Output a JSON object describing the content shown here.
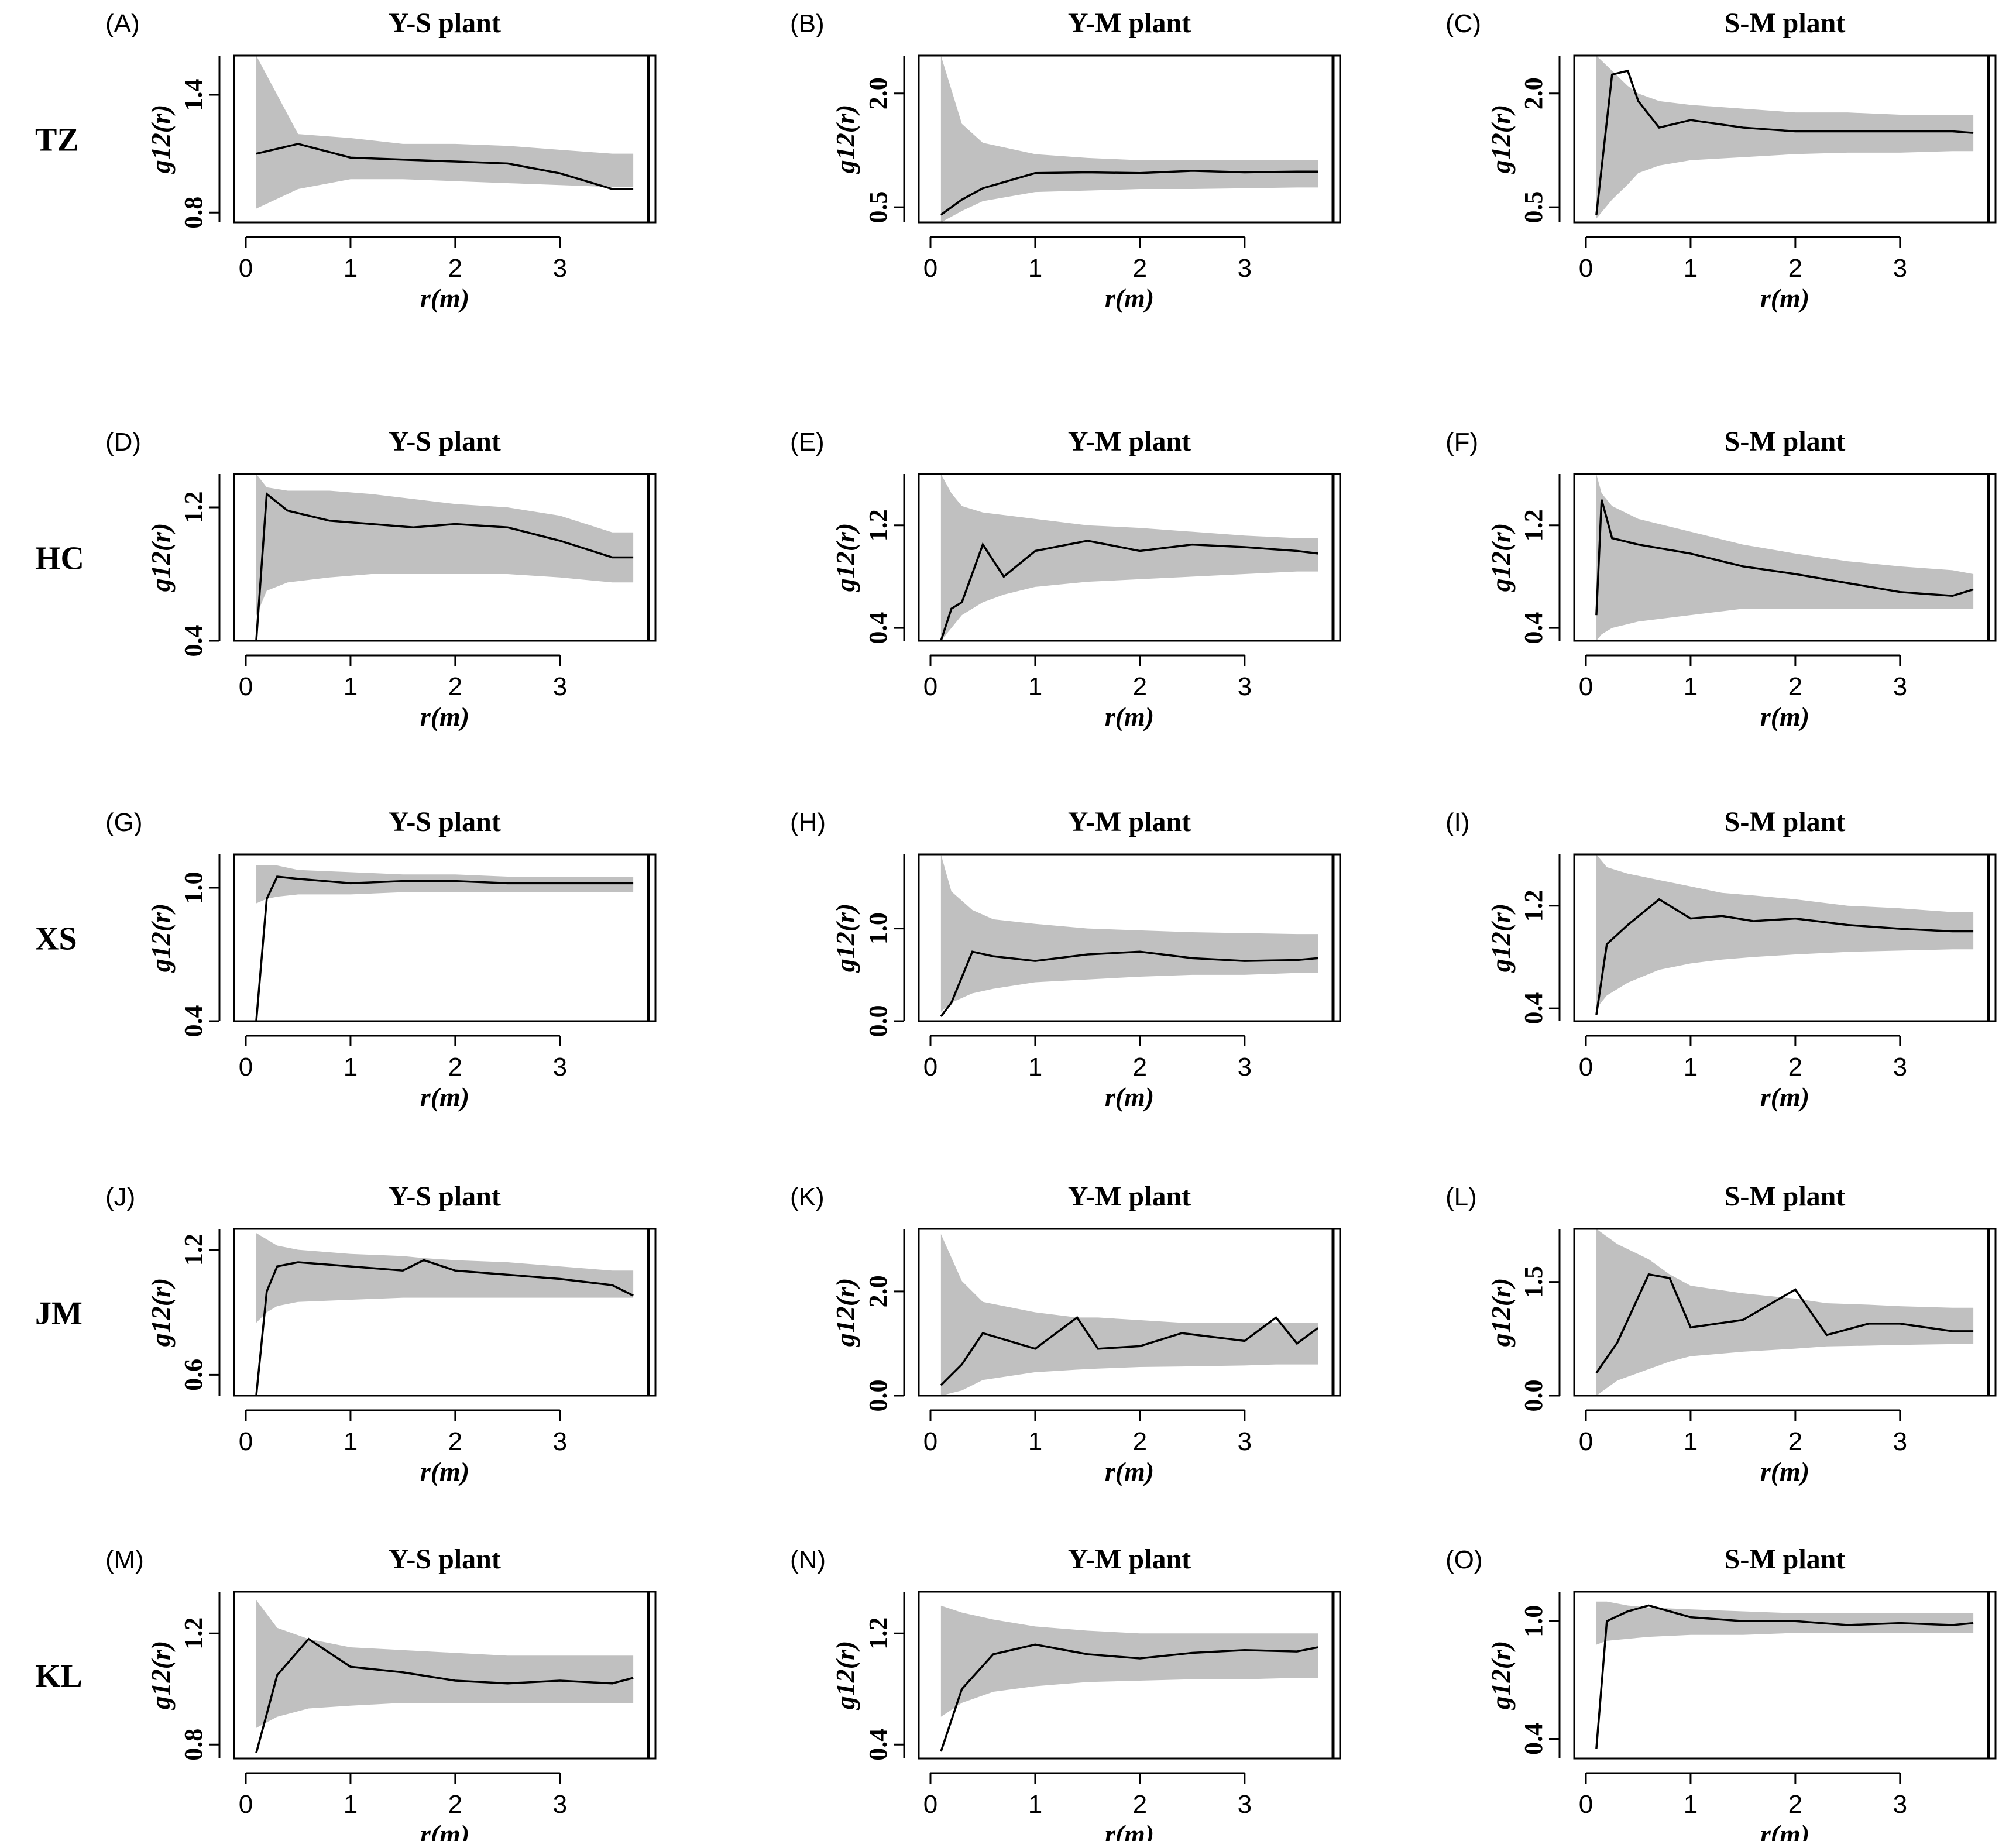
{
  "figure": {
    "rows": [
      {
        "label": "TZ"
      },
      {
        "label": "HC"
      },
      {
        "label": "XS"
      },
      {
        "label": "JM"
      },
      {
        "label": "KL"
      }
    ]
  },
  "chart_data": [
    {
      "type": "line",
      "panel": "(A)",
      "title": "Y-S plant",
      "xlabel": "r(m)",
      "ylabel": "g12(r)",
      "xlim": [
        0,
        3.8
      ],
      "ylim": [
        0.75,
        1.6
      ],
      "xticks": [
        "0",
        "1",
        "2",
        "3"
      ],
      "yticks": [
        "0.8",
        "1.4"
      ],
      "x": [
        0.1,
        0.5,
        1,
        1.5,
        2,
        2.5,
        3,
        3.5,
        3.7
      ],
      "series": [
        {
          "name": "g12(r)",
          "values": [
            1.1,
            1.15,
            1.08,
            1.07,
            1.06,
            1.05,
            1.0,
            0.92,
            0.92
          ]
        }
      ],
      "envelope": {
        "upper": [
          1.6,
          1.2,
          1.18,
          1.15,
          1.15,
          1.14,
          1.12,
          1.1,
          1.1
        ],
        "lower": [
          0.82,
          0.92,
          0.97,
          0.97,
          0.96,
          0.95,
          0.94,
          0.93,
          0.93
        ]
      }
    },
    {
      "type": "line",
      "panel": "(B)",
      "title": "Y-M plant",
      "xlabel": "r(m)",
      "ylabel": "g12(r)",
      "xlim": [
        0,
        3.8
      ],
      "ylim": [
        0.3,
        2.5
      ],
      "xticks": [
        "0",
        "1",
        "2",
        "3"
      ],
      "yticks": [
        "0.5",
        "2.0"
      ],
      "x": [
        0.1,
        0.3,
        0.5,
        1,
        1.5,
        2,
        2.5,
        3,
        3.5,
        3.7
      ],
      "series": [
        {
          "name": "g12(r)",
          "values": [
            0.4,
            0.6,
            0.75,
            0.95,
            0.96,
            0.95,
            0.98,
            0.96,
            0.97,
            0.97
          ]
        }
      ],
      "envelope": {
        "upper": [
          2.5,
          1.6,
          1.35,
          1.2,
          1.15,
          1.12,
          1.12,
          1.12,
          1.12,
          1.12
        ],
        "lower": [
          0.3,
          0.45,
          0.58,
          0.7,
          0.72,
          0.74,
          0.74,
          0.75,
          0.76,
          0.76
        ]
      }
    },
    {
      "type": "line",
      "panel": "(C)",
      "title": "S-M plant",
      "xlabel": "r(m)",
      "ylabel": "g12(r)",
      "xlim": [
        0,
        3.8
      ],
      "ylim": [
        0.3,
        2.5
      ],
      "xticks": [
        "0",
        "1",
        "2",
        "3"
      ],
      "yticks": [
        "0.5",
        "2.0"
      ],
      "x": [
        0.1,
        0.25,
        0.4,
        0.5,
        0.7,
        1,
        1.5,
        2,
        2.5,
        3,
        3.5,
        3.7
      ],
      "series": [
        {
          "name": "g12(r)",
          "values": [
            0.4,
            2.25,
            2.3,
            1.9,
            1.55,
            1.65,
            1.55,
            1.5,
            1.5,
            1.5,
            1.5,
            1.48
          ]
        }
      ],
      "envelope": {
        "upper": [
          2.5,
          2.3,
          2.1,
          2.0,
          1.9,
          1.85,
          1.8,
          1.75,
          1.75,
          1.72,
          1.72,
          1.72
        ],
        "lower": [
          0.35,
          0.6,
          0.8,
          0.95,
          1.05,
          1.12,
          1.16,
          1.2,
          1.22,
          1.22,
          1.24,
          1.24
        ]
      }
    },
    {
      "type": "line",
      "panel": "(D)",
      "title": "Y-S plant",
      "xlabel": "r(m)",
      "ylabel": "g12(r)",
      "xlim": [
        0,
        3.8
      ],
      "ylim": [
        0.4,
        1.4
      ],
      "xticks": [
        "0",
        "1",
        "2",
        "3"
      ],
      "yticks": [
        "0.4",
        "1.2"
      ],
      "x": [
        0.1,
        0.2,
        0.4,
        0.8,
        1.2,
        1.6,
        2,
        2.5,
        3,
        3.5,
        3.7
      ],
      "series": [
        {
          "name": "g12(r)",
          "values": [
            0.4,
            1.28,
            1.18,
            1.12,
            1.1,
            1.08,
            1.1,
            1.08,
            1.0,
            0.9,
            0.9
          ]
        }
      ],
      "envelope": {
        "upper": [
          1.4,
          1.32,
          1.3,
          1.3,
          1.28,
          1.25,
          1.22,
          1.2,
          1.15,
          1.05,
          1.05
        ],
        "lower": [
          0.55,
          0.7,
          0.75,
          0.78,
          0.8,
          0.8,
          0.8,
          0.8,
          0.78,
          0.75,
          0.75
        ]
      }
    },
    {
      "type": "line",
      "panel": "(E)",
      "title": "Y-M plant",
      "xlabel": "r(m)",
      "ylabel": "g12(r)",
      "xlim": [
        0,
        3.8
      ],
      "ylim": [
        0.3,
        1.6
      ],
      "xticks": [
        "0",
        "1",
        "2",
        "3"
      ],
      "yticks": [
        "0.4",
        "1.2"
      ],
      "x": [
        0.1,
        0.2,
        0.3,
        0.5,
        0.7,
        1,
        1.5,
        2,
        2.5,
        3,
        3.5,
        3.7
      ],
      "series": [
        {
          "name": "g12(r)",
          "values": [
            0.3,
            0.55,
            0.6,
            1.05,
            0.8,
            1.0,
            1.08,
            1.0,
            1.05,
            1.03,
            1.0,
            0.98
          ]
        }
      ],
      "envelope": {
        "upper": [
          1.6,
          1.45,
          1.35,
          1.3,
          1.28,
          1.25,
          1.2,
          1.18,
          1.15,
          1.12,
          1.1,
          1.1
        ],
        "lower": [
          0.3,
          0.4,
          0.5,
          0.6,
          0.66,
          0.72,
          0.76,
          0.78,
          0.8,
          0.82,
          0.84,
          0.84
        ]
      }
    },
    {
      "type": "line",
      "panel": "(F)",
      "title": "S-M plant",
      "xlabel": "r(m)",
      "ylabel": "g12(r)",
      "xlim": [
        0,
        3.8
      ],
      "ylim": [
        0.3,
        1.6
      ],
      "xticks": [
        "0",
        "1",
        "2",
        "3"
      ],
      "yticks": [
        "0.4",
        "1.2"
      ],
      "x": [
        0.1,
        0.15,
        0.25,
        0.5,
        1,
        1.5,
        2,
        2.5,
        3,
        3.5,
        3.7
      ],
      "series": [
        {
          "name": "g12(r)",
          "values": [
            0.5,
            1.4,
            1.1,
            1.05,
            0.98,
            0.88,
            0.82,
            0.75,
            0.68,
            0.65,
            0.7
          ]
        }
      ],
      "envelope": {
        "upper": [
          1.6,
          1.45,
          1.35,
          1.25,
          1.15,
          1.05,
          0.98,
          0.92,
          0.88,
          0.85,
          0.82
        ],
        "lower": [
          0.3,
          0.35,
          0.4,
          0.45,
          0.5,
          0.55,
          0.55,
          0.55,
          0.55,
          0.55,
          0.55
        ]
      }
    },
    {
      "type": "line",
      "panel": "(G)",
      "title": "Y-S plant",
      "xlabel": "r(m)",
      "ylabel": "g12(r)",
      "xlim": [
        0,
        3.8
      ],
      "ylim": [
        0.4,
        1.15
      ],
      "xticks": [
        "0",
        "1",
        "2",
        "3"
      ],
      "yticks": [
        "0.4",
        "1.0"
      ],
      "x": [
        0.1,
        0.2,
        0.3,
        0.5,
        1,
        1.5,
        2,
        2.5,
        3,
        3.5,
        3.7
      ],
      "series": [
        {
          "name": "g12(r)",
          "values": [
            0.4,
            0.95,
            1.05,
            1.04,
            1.02,
            1.03,
            1.03,
            1.02,
            1.02,
            1.02,
            1.02
          ]
        }
      ],
      "envelope": {
        "upper": [
          1.1,
          1.1,
          1.1,
          1.08,
          1.07,
          1.06,
          1.06,
          1.05,
          1.05,
          1.05,
          1.05
        ],
        "lower": [
          0.93,
          0.95,
          0.96,
          0.97,
          0.97,
          0.98,
          0.98,
          0.98,
          0.98,
          0.98,
          0.98
        ]
      }
    },
    {
      "type": "line",
      "panel": "(H)",
      "title": "Y-M plant",
      "xlabel": "r(m)",
      "ylabel": "g12(r)",
      "xlim": [
        0,
        3.8
      ],
      "ylim": [
        0.0,
        1.8
      ],
      "xticks": [
        "0",
        "1",
        "2",
        "3"
      ],
      "yticks": [
        "0.0",
        "1.0"
      ],
      "x": [
        0.1,
        0.2,
        0.4,
        0.6,
        1,
        1.5,
        2,
        2.5,
        3,
        3.5,
        3.7
      ],
      "series": [
        {
          "name": "g12(r)",
          "values": [
            0.05,
            0.2,
            0.75,
            0.7,
            0.65,
            0.72,
            0.75,
            0.68,
            0.65,
            0.66,
            0.68
          ]
        }
      ],
      "envelope": {
        "upper": [
          1.8,
          1.4,
          1.2,
          1.1,
          1.05,
          1.0,
          0.98,
          0.96,
          0.95,
          0.94,
          0.94
        ],
        "lower": [
          0.1,
          0.2,
          0.3,
          0.35,
          0.42,
          0.45,
          0.48,
          0.5,
          0.5,
          0.52,
          0.52
        ]
      }
    },
    {
      "type": "line",
      "panel": "(I)",
      "title": "S-M plant",
      "xlabel": "r(m)",
      "ylabel": "g12(r)",
      "xlim": [
        0,
        3.8
      ],
      "ylim": [
        0.3,
        1.6
      ],
      "xticks": [
        "0",
        "1",
        "2",
        "3"
      ],
      "yticks": [
        "0.4",
        "1.2"
      ],
      "x": [
        0.1,
        0.2,
        0.4,
        0.7,
        1,
        1.3,
        1.6,
        2,
        2.5,
        3,
        3.5,
        3.7
      ],
      "series": [
        {
          "name": "g12(r)",
          "values": [
            0.35,
            0.9,
            1.05,
            1.25,
            1.1,
            1.12,
            1.08,
            1.1,
            1.05,
            1.02,
            1.0,
            1.0
          ]
        }
      ],
      "envelope": {
        "upper": [
          1.6,
          1.5,
          1.45,
          1.4,
          1.35,
          1.3,
          1.28,
          1.25,
          1.2,
          1.18,
          1.15,
          1.15
        ],
        "lower": [
          0.4,
          0.5,
          0.6,
          0.7,
          0.75,
          0.78,
          0.8,
          0.82,
          0.84,
          0.85,
          0.86,
          0.86
        ]
      }
    },
    {
      "type": "line",
      "panel": "(J)",
      "title": "Y-S plant",
      "xlabel": "r(m)",
      "ylabel": "g12(r)",
      "xlim": [
        0,
        3.8
      ],
      "ylim": [
        0.5,
        1.3
      ],
      "xticks": [
        "0",
        "1",
        "2",
        "3"
      ],
      "yticks": [
        "0.6",
        "1.2"
      ],
      "x": [
        0.1,
        0.2,
        0.3,
        0.5,
        1,
        1.5,
        1.7,
        2,
        2.5,
        3,
        3.5,
        3.7
      ],
      "series": [
        {
          "name": "g12(r)",
          "values": [
            0.5,
            1.0,
            1.12,
            1.14,
            1.12,
            1.1,
            1.15,
            1.1,
            1.08,
            1.06,
            1.03,
            0.98
          ]
        }
      ],
      "envelope": {
        "upper": [
          1.28,
          1.25,
          1.22,
          1.2,
          1.18,
          1.17,
          1.16,
          1.15,
          1.14,
          1.12,
          1.1,
          1.1
        ],
        "lower": [
          0.85,
          0.9,
          0.93,
          0.95,
          0.96,
          0.97,
          0.97,
          0.97,
          0.97,
          0.97,
          0.97,
          0.97
        ]
      }
    },
    {
      "type": "line",
      "panel": "(K)",
      "title": "Y-M plant",
      "xlabel": "r(m)",
      "ylabel": "g12(r)",
      "xlim": [
        0,
        3.8
      ],
      "ylim": [
        0.0,
        3.2
      ],
      "xticks": [
        "0",
        "1",
        "2",
        "3"
      ],
      "yticks": [
        "0.0",
        "2.0"
      ],
      "x": [
        0.1,
        0.3,
        0.5,
        1,
        1.4,
        1.6,
        2,
        2.4,
        3,
        3.3,
        3.5,
        3.7
      ],
      "series": [
        {
          "name": "g12(r)",
          "values": [
            0.2,
            0.6,
            1.2,
            0.9,
            1.5,
            0.9,
            0.95,
            1.2,
            1.05,
            1.5,
            1.0,
            1.3
          ]
        }
      ],
      "envelope": {
        "upper": [
          3.1,
          2.2,
          1.8,
          1.6,
          1.5,
          1.5,
          1.45,
          1.4,
          1.4,
          1.4,
          1.4,
          1.4
        ],
        "lower": [
          0.0,
          0.1,
          0.3,
          0.45,
          0.5,
          0.52,
          0.55,
          0.56,
          0.58,
          0.6,
          0.6,
          0.6
        ]
      }
    },
    {
      "type": "line",
      "panel": "(L)",
      "title": "S-M plant",
      "xlabel": "r(m)",
      "ylabel": "g12(r)",
      "xlim": [
        0,
        3.8
      ],
      "ylim": [
        0.0,
        2.2
      ],
      "xticks": [
        "0",
        "1",
        "2",
        "3"
      ],
      "yticks": [
        "0.0",
        "1.5"
      ],
      "x": [
        0.1,
        0.3,
        0.6,
        0.8,
        1,
        1.5,
        2,
        2.3,
        2.7,
        3,
        3.5,
        3.7
      ],
      "series": [
        {
          "name": "g12(r)",
          "values": [
            0.3,
            0.7,
            1.6,
            1.55,
            0.9,
            1.0,
            1.4,
            0.8,
            0.95,
            0.95,
            0.85,
            0.85
          ]
        }
      ],
      "envelope": {
        "upper": [
          2.2,
          2.0,
          1.8,
          1.6,
          1.45,
          1.35,
          1.28,
          1.22,
          1.2,
          1.18,
          1.16,
          1.16
        ],
        "lower": [
          0.0,
          0.2,
          0.35,
          0.45,
          0.52,
          0.58,
          0.62,
          0.65,
          0.66,
          0.67,
          0.68,
          0.68
        ]
      }
    },
    {
      "type": "line",
      "panel": "(M)",
      "title": "Y-S plant",
      "xlabel": "r(m)",
      "ylabel": "g12(r)",
      "xlim": [
        0,
        3.8
      ],
      "ylim": [
        0.75,
        1.35
      ],
      "xticks": [
        "0",
        "1",
        "2",
        "3"
      ],
      "yticks": [
        "0.8",
        "1.2"
      ],
      "x": [
        0.1,
        0.3,
        0.6,
        1,
        1.5,
        2,
        2.5,
        3,
        3.5,
        3.7
      ],
      "series": [
        {
          "name": "g12(r)",
          "values": [
            0.77,
            1.05,
            1.18,
            1.08,
            1.06,
            1.03,
            1.02,
            1.03,
            1.02,
            1.04
          ]
        }
      ],
      "envelope": {
        "upper": [
          1.32,
          1.22,
          1.18,
          1.15,
          1.14,
          1.13,
          1.12,
          1.12,
          1.12,
          1.12
        ],
        "lower": [
          0.86,
          0.9,
          0.93,
          0.94,
          0.95,
          0.95,
          0.95,
          0.95,
          0.95,
          0.95
        ]
      }
    },
    {
      "type": "line",
      "panel": "(N)",
      "title": "Y-M plant",
      "xlabel": "r(m)",
      "ylabel": "g12(r)",
      "xlim": [
        0,
        3.8
      ],
      "ylim": [
        0.3,
        1.5
      ],
      "xticks": [
        "0",
        "1",
        "2",
        "3"
      ],
      "yticks": [
        "0.4",
        "1.2"
      ],
      "x": [
        0.1,
        0.3,
        0.6,
        1,
        1.5,
        2,
        2.5,
        3,
        3.5,
        3.7
      ],
      "series": [
        {
          "name": "g12(r)",
          "values": [
            0.35,
            0.8,
            1.05,
            1.12,
            1.05,
            1.02,
            1.06,
            1.08,
            1.07,
            1.1
          ]
        }
      ],
      "envelope": {
        "upper": [
          1.4,
          1.35,
          1.3,
          1.25,
          1.22,
          1.2,
          1.2,
          1.2,
          1.2,
          1.2
        ],
        "lower": [
          0.6,
          0.7,
          0.78,
          0.82,
          0.85,
          0.86,
          0.87,
          0.87,
          0.88,
          0.88
        ]
      }
    },
    {
      "type": "line",
      "panel": "(O)",
      "title": "S-M plant",
      "xlabel": "r(m)",
      "ylabel": "g12(r)",
      "xlim": [
        0,
        3.8
      ],
      "ylim": [
        0.3,
        1.15
      ],
      "xticks": [
        "0",
        "1",
        "2",
        "3"
      ],
      "yticks": [
        "0.4",
        "1.0"
      ],
      "x": [
        0.1,
        0.2,
        0.4,
        0.6,
        1,
        1.5,
        2,
        2.5,
        3,
        3.5,
        3.7
      ],
      "series": [
        {
          "name": "g12(r)",
          "values": [
            0.35,
            1.0,
            1.05,
            1.08,
            1.02,
            1.0,
            1.0,
            0.98,
            0.99,
            0.98,
            0.99
          ]
        }
      ],
      "envelope": {
        "upper": [
          1.1,
          1.1,
          1.08,
          1.07,
          1.06,
          1.05,
          1.04,
          1.04,
          1.04,
          1.04,
          1.04
        ],
        "lower": [
          0.88,
          0.9,
          0.91,
          0.92,
          0.93,
          0.93,
          0.94,
          0.94,
          0.94,
          0.94,
          0.94
        ]
      }
    }
  ]
}
